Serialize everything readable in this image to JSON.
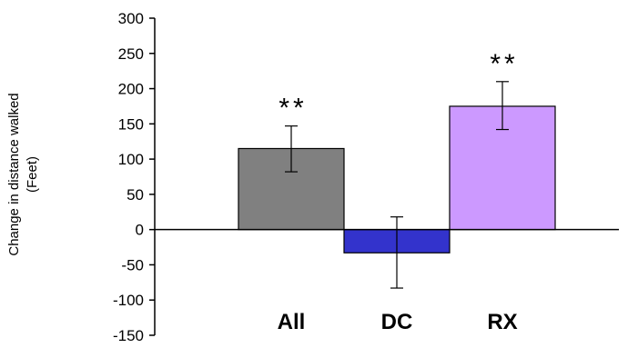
{
  "chart_data": {
    "type": "bar",
    "title": "",
    "xlabel": "",
    "ylabel": [
      "Change in distance walked",
      "(Feet)"
    ],
    "ylim": [
      -150,
      300
    ],
    "yticks": [
      300,
      250,
      200,
      150,
      100,
      50,
      0,
      -50,
      -100,
      -150
    ],
    "categories": [
      "All",
      "DC",
      "RX"
    ],
    "values": [
      115,
      -33,
      175
    ],
    "errors_low": [
      82,
      -83,
      142
    ],
    "errors_high": [
      147,
      18,
      210
    ],
    "colors": [
      "#808080",
      "#3333cc",
      "#cc99ff"
    ],
    "annotations": [
      "**",
      "",
      "**"
    ],
    "grid": false,
    "legend": "none"
  }
}
